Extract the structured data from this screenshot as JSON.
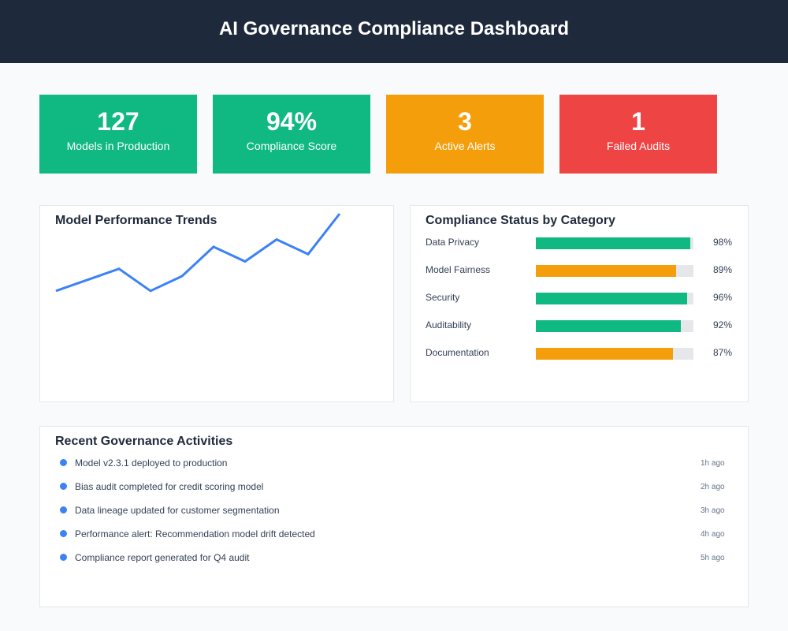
{
  "header": {
    "title": "AI Governance Compliance Dashboard"
  },
  "kpis": [
    {
      "value": "127",
      "label": "Models in Production",
      "color": "#10b981"
    },
    {
      "value": "94%",
      "label": "Compliance Score",
      "color": "#10b981"
    },
    {
      "value": "3",
      "label": "Active Alerts",
      "color": "#f59e0b"
    },
    {
      "value": "1",
      "label": "Failed Audits",
      "color": "#ef4444"
    }
  ],
  "performance": {
    "title": "Model Performance Trends",
    "line_color": "#3b82f6",
    "chart_data": {
      "type": "line",
      "title": "Model Performance Trends",
      "x": [
        1,
        2,
        3,
        4,
        5,
        6,
        7,
        8,
        9,
        10
      ],
      "values": [
        40,
        55,
        70,
        40,
        60,
        100,
        80,
        110,
        90,
        145
      ],
      "ylim": [
        0,
        145
      ],
      "grid": false
    }
  },
  "compliance": {
    "title": "Compliance Status by Category",
    "track_color": "#e5e7eb",
    "items": [
      {
        "name": "Data Privacy",
        "pct_label": "98%",
        "value": 98,
        "color": "#10b981"
      },
      {
        "name": "Model Fairness",
        "pct_label": "89%",
        "value": 89,
        "color": "#f59e0b"
      },
      {
        "name": "Security",
        "pct_label": "96%",
        "value": 96,
        "color": "#10b981"
      },
      {
        "name": "Auditability",
        "pct_label": "92%",
        "value": 92,
        "color": "#10b981"
      },
      {
        "name": "Documentation",
        "pct_label": "87%",
        "value": 87,
        "color": "#f59e0b"
      }
    ]
  },
  "activities": {
    "title": "Recent Governance Activities",
    "dot_color": "#3b82f6",
    "items": [
      {
        "text": "Model v2.3.1 deployed to production",
        "time": "1h ago"
      },
      {
        "text": "Bias audit completed for credit scoring model",
        "time": "2h ago"
      },
      {
        "text": "Data lineage updated for customer segmentation",
        "time": "3h ago"
      },
      {
        "text": "Performance alert: Recommendation model drift detected",
        "time": "4h ago"
      },
      {
        "text": "Compliance report generated for Q4 audit",
        "time": "5h ago"
      }
    ]
  }
}
